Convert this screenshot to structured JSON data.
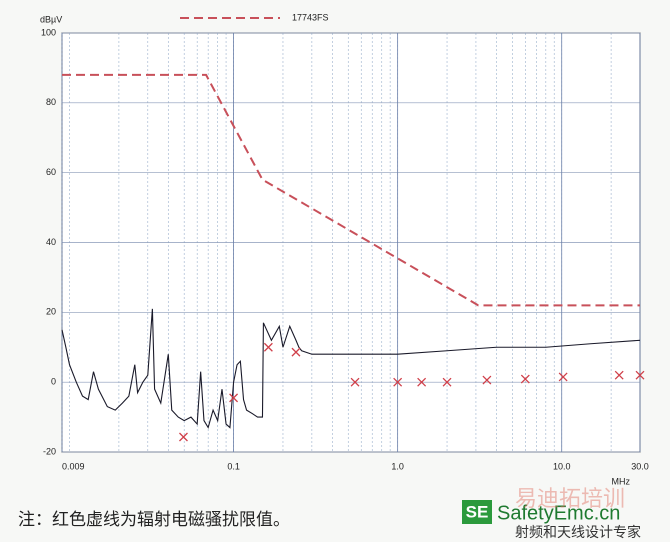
{
  "chart_data": {
    "type": "line",
    "y_unit": "dBµV",
    "x_unit": "MHz",
    "xscale": "log",
    "grid": true,
    "minor_grid": true,
    "xlim": [
      0.009,
      30
    ],
    "ylim": [
      -20,
      100
    ],
    "xticks": [
      0.009,
      0.1,
      {
        "value": 1,
        "label": "1.0"
      },
      {
        "value": 10,
        "label": "10.0"
      },
      {
        "value": 30,
        "label": "30.0"
      }
    ],
    "yticks": [
      -20,
      0,
      20,
      40,
      60,
      80,
      100
    ],
    "series": [
      {
        "name": "17743FS",
        "color": "#c8505a",
        "style": "dashed",
        "x": [
          0.009,
          0.068,
          0.15,
          3.1,
          30
        ],
        "values": [
          88,
          88,
          58,
          22,
          22
        ]
      },
      {
        "color": "#1a1a2a",
        "style": "solid",
        "x": [
          0.009,
          0.0095,
          0.01,
          0.011,
          0.012,
          0.013,
          0.014,
          0.015,
          0.017,
          0.019,
          0.021,
          0.023,
          0.025,
          0.026,
          0.028,
          0.03,
          0.032,
          0.033,
          0.036,
          0.04,
          0.042,
          0.046,
          0.05,
          0.055,
          0.06,
          0.063,
          0.066,
          0.07,
          0.075,
          0.08,
          0.085,
          0.09,
          0.095,
          0.1,
          0.105,
          0.11,
          0.115,
          0.12,
          0.13,
          0.14,
          0.15,
          0.152,
          0.17,
          0.19,
          0.2,
          0.22,
          0.24,
          0.25,
          0.26,
          0.3,
          0.5,
          1,
          2,
          4,
          8,
          15,
          30
        ],
        "values": [
          15,
          10,
          5,
          0,
          -4,
          -5,
          3,
          -2,
          -7,
          -8,
          -6,
          -4,
          5,
          -3,
          0,
          2,
          21,
          -2,
          -6,
          8,
          -8,
          -10,
          -11,
          -10,
          -12,
          3,
          -11,
          -13,
          -8,
          -11,
          -2,
          -12,
          -13,
          0,
          5,
          6,
          -5,
          -8,
          -9,
          -10,
          -10,
          17,
          12,
          16,
          10,
          16,
          12,
          10,
          9,
          8,
          8,
          8,
          9,
          10,
          10,
          11,
          12
        ]
      },
      {
        "color": "#d0404a",
        "style": "cross",
        "x": [
          0.0495,
          0.1,
          0.163,
          0.24,
          0.55,
          1.0,
          1.4,
          2.0,
          3.5,
          6.0,
          10.2,
          22.4,
          30
        ],
        "values": [
          -15.7,
          -4.5,
          10,
          8.6,
          0,
          0,
          0,
          0,
          0.6,
          0.9,
          1.5,
          2,
          2
        ]
      }
    ],
    "annotation": "注：红色虚线为辐射电磁骚扰限值。"
  },
  "watermark": {
    "badge": "SE",
    "site": "SafetyEmc.cn",
    "brand": "易迪拓培训",
    "tagline": "射频和天线设计专家"
  }
}
